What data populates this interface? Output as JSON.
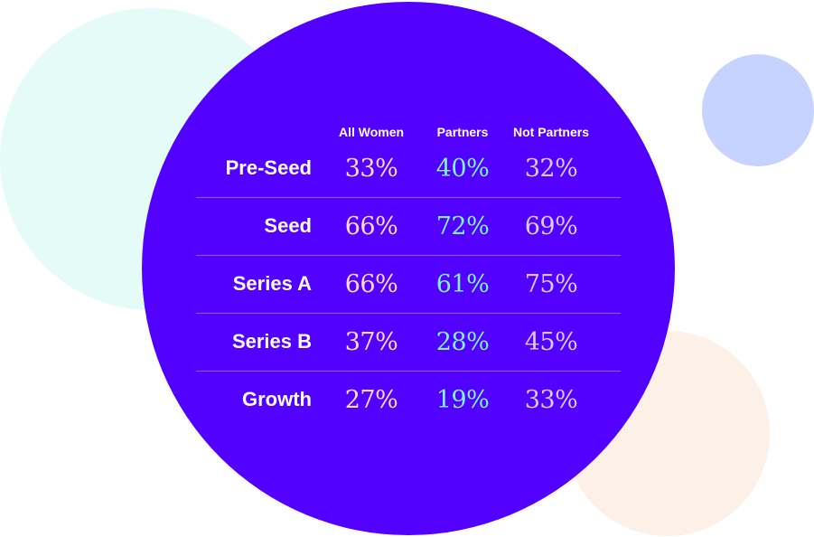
{
  "colors": {
    "main_circle": "#5200ff",
    "mint_circle": "#e4fbf8",
    "blue_circle": "#c6d2ff",
    "peach_circle": "#fcf0e7",
    "all_women": "#ffd9cc",
    "partners": "#7ff2e6",
    "not_partners": "#d8ccff"
  },
  "chart_data": {
    "type": "table",
    "columns": [
      "All Women",
      "Partners",
      "Not Partners"
    ],
    "rows": [
      {
        "label": "Pre-Seed",
        "values": [
          "33%",
          "40%",
          "32%"
        ]
      },
      {
        "label": "Seed",
        "values": [
          "66%",
          "72%",
          "69%"
        ]
      },
      {
        "label": "Series A",
        "values": [
          "66%",
          "61%",
          "75%"
        ]
      },
      {
        "label": "Series B",
        "values": [
          "37%",
          "28%",
          "45%"
        ]
      },
      {
        "label": "Growth",
        "values": [
          "27%",
          "19%",
          "33%"
        ]
      }
    ]
  }
}
